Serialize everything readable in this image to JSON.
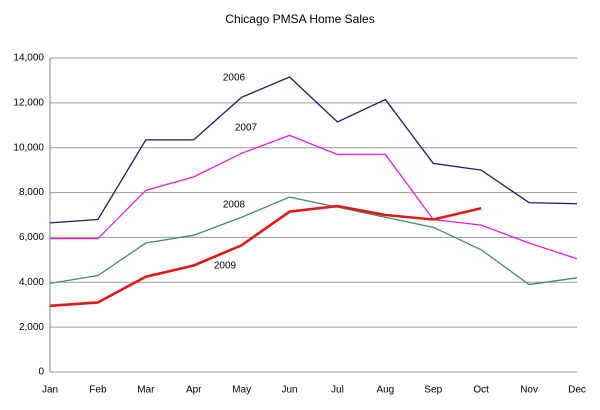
{
  "chart_data": {
    "type": "line",
    "title": "Chicago PMSA Home Sales",
    "categories": [
      "Jan",
      "Feb",
      "Mar",
      "Apr",
      "May",
      "Jun",
      "Jul",
      "Aug",
      "Sep",
      "Oct",
      "Nov",
      "Dec"
    ],
    "series": [
      {
        "name": "2006",
        "color": "#1a1a6e",
        "values": [
          6650,
          6800,
          10350,
          10350,
          12250,
          13150,
          11150,
          12150,
          9300,
          9000,
          7550,
          7500
        ]
      },
      {
        "name": "2007",
        "color": "#e020e0",
        "values": [
          5950,
          5950,
          8100,
          8700,
          9750,
          10550,
          9700,
          9700,
          6800,
          6550,
          5750,
          5050
        ]
      },
      {
        "name": "2008",
        "color": "#3f8f6a",
        "values": [
          3950,
          4300,
          5750,
          6100,
          6900,
          7800,
          7350,
          6900,
          6450,
          5450,
          3900,
          4200
        ]
      },
      {
        "name": "2009",
        "color": "#e01818",
        "values": [
          2950,
          3100,
          4250,
          4750,
          5650,
          7150,
          7400,
          7000,
          6800,
          7300,
          null,
          null
        ]
      }
    ],
    "ylim": [
      0,
      14000
    ],
    "yticks": [
      0,
      {
        "value": 2000,
        "label": "2,000"
      },
      {
        "value": 4000,
        "label": "4,000"
      },
      {
        "value": 6000,
        "label": "6,000"
      },
      {
        "value": 8000,
        "label": "8,000"
      },
      {
        "value": 10000,
        "label": "10,000"
      },
      {
        "value": 12000,
        "label": "12,000"
      },
      {
        "value": 14000,
        "label": "14,000"
      }
    ],
    "grid": true
  }
}
